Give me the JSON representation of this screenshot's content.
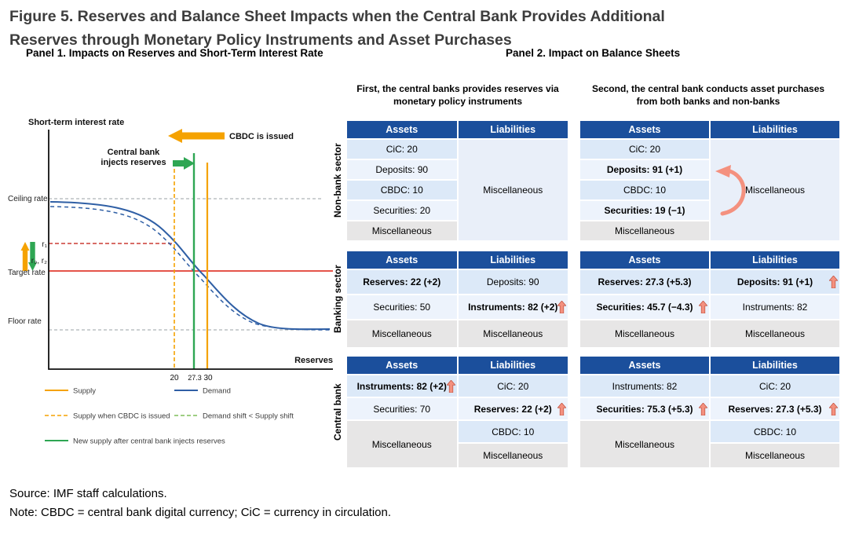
{
  "figure": {
    "title_line1": "Figure 5. Reserves and Balance Sheet Impacts when the Central Bank Provides Additional",
    "title_line2": "Reserves through Monetary Policy Instruments and Asset Purchases",
    "source": "Source: IMF staff calculations.",
    "note": "Note: CBDC = central bank digital currency; CiC = currency in circulation."
  },
  "colors": {
    "header_bg": "#1B4F9C",
    "row_alt0": "#DCE9F8",
    "row_alt1": "#EDF3FC",
    "row_misc": "#E7E6E6",
    "row_merged": "#E9EFF9",
    "arrow_fill": "#F4917F",
    "arrow_stroke": "#C0503E",
    "supply_color": "#F5A200",
    "demand_color": "#2F5FA5",
    "injection_color": "#2EA653",
    "demand_shift_color": "#7FBE5A",
    "target_color": "#E03C31",
    "r1_color": "#CC3B33",
    "guide_color": "#9AA0A6"
  },
  "panel1": {
    "title": "Panel 1. Impacts on Reserves and Short-Term Interest Rate",
    "y_axis_label": "Short-term interest rate",
    "x_axis_label": "Reserves",
    "cbdc_arrow_label": "CBDC is issued",
    "inject_label_line1": "Central bank",
    "inject_label_line2": "injects reserves",
    "ceiling_label": "Ceiling rate",
    "target_label": "Target rate",
    "floor_label": "Floor rate",
    "r1_label": "r₁",
    "r0_r2_label": "r₀, r₂",
    "x_ticks": [
      "20",
      "27.3",
      "30"
    ],
    "legend": [
      {
        "label": "Supply",
        "style": "solid",
        "color": "#F5A200"
      },
      {
        "label": "Demand",
        "style": "solid",
        "color": "#2F5FA5"
      },
      {
        "label": "Supply when CBDC is issued",
        "style": "dashed",
        "color": "#F5A200"
      },
      {
        "label": "Demand shift < Supply shift",
        "style": "dashed",
        "color": "#7FBE5A"
      },
      {
        "label": "New supply after central bank injects reserves",
        "style": "solid",
        "color": "#2EA653"
      }
    ]
  },
  "panel2": {
    "title": "Panel 2. Impact on Balance Sheets",
    "column_headers": [
      "First, the central banks provides reserves via monetary policy instruments",
      "Second, the central bank conducts asset purchases from both banks and non-banks"
    ],
    "table_headers": {
      "assets": "Assets",
      "liabilities": "Liabilities"
    },
    "sectors": [
      {
        "name": "Non-bank sector",
        "tables": [
          {
            "rows": [
              {
                "assets": {
                  "text": "CiC: 20"
                },
                "liabilities": {
                  "text": "Miscellaneous",
                  "merged": true,
                  "rowspan": 5
                }
              },
              {
                "assets": {
                  "text": "Deposits: 90"
                }
              },
              {
                "assets": {
                  "text": "CBDC: 10"
                }
              },
              {
                "assets": {
                  "text": "Securities: 20"
                }
              },
              {
                "assets": {
                  "text": "Miscellaneous",
                  "misc": true
                }
              }
            ]
          },
          {
            "curved_arrow": true,
            "rows": [
              {
                "assets": {
                  "text": "CiC: 20"
                },
                "liabilities": {
                  "text": "Miscellaneous",
                  "merged": true,
                  "rowspan": 5
                }
              },
              {
                "assets": {
                  "text": "Deposits: 91 (+1)",
                  "bold": true
                }
              },
              {
                "assets": {
                  "text": "CBDC: 10"
                }
              },
              {
                "assets": {
                  "text": "Securities: 19 (−1)",
                  "bold": true
                }
              },
              {
                "assets": {
                  "text": "Miscellaneous",
                  "misc": true
                }
              }
            ]
          }
        ]
      },
      {
        "name": "Banking sector",
        "tables": [
          {
            "rows": [
              {
                "assets": {
                  "text": "Reserves: 22 (+2)",
                  "bold": true
                },
                "liabilities": {
                  "text": "Deposits: 90"
                }
              },
              {
                "assets": {
                  "text": "Securities: 50"
                },
                "liabilities": {
                  "text": "Instruments: 82 (+2)",
                  "bold": true,
                  "arrow": true
                }
              },
              {
                "assets": {
                  "text": "Miscellaneous",
                  "misc": true
                },
                "liabilities": {
                  "text": "Miscellaneous",
                  "misc": true
                }
              }
            ]
          },
          {
            "rows": [
              {
                "assets": {
                  "text": "Reserves: 27.3 (+5.3)",
                  "bold": true
                },
                "liabilities": {
                  "text": "Deposits: 91 (+1)",
                  "bold": true,
                  "arrow": true
                }
              },
              {
                "assets": {
                  "text": "Securities: 45.7 (−4.3)",
                  "bold": true,
                  "arrow": true
                },
                "liabilities": {
                  "text": "Instruments: 82"
                }
              },
              {
                "assets": {
                  "text": "Miscellaneous",
                  "misc": true
                },
                "liabilities": {
                  "text": "Miscellaneous",
                  "misc": true
                }
              }
            ]
          }
        ]
      },
      {
        "name": "Central bank",
        "tables": [
          {
            "rows": [
              {
                "assets": {
                  "text": "Instruments: 82 (+2)",
                  "bold": true,
                  "arrow": true
                },
                "liabilities": {
                  "text": "CiC: 20"
                }
              },
              {
                "assets": {
                  "text": "Securities: 70"
                },
                "liabilities": {
                  "text": "Reserves: 22 (+2)",
                  "bold": true,
                  "arrow": true
                }
              },
              {
                "assets": {
                  "text": "Miscellaneous",
                  "misc": true,
                  "rowspan": 2
                },
                "liabilities": {
                  "text": "CBDC: 10"
                }
              },
              {
                "liabilities": {
                  "text": "Miscellaneous",
                  "misc": true
                }
              }
            ]
          },
          {
            "rows": [
              {
                "assets": {
                  "text": "Instruments: 82"
                },
                "liabilities": {
                  "text": "CiC: 20"
                }
              },
              {
                "assets": {
                  "text": "Securities: 75.3 (+5.3)",
                  "bold": true,
                  "arrow": true
                },
                "liabilities": {
                  "text": "Reserves: 27.3 (+5.3)",
                  "bold": true,
                  "arrow": true
                }
              },
              {
                "assets": {
                  "text": "Miscellaneous",
                  "misc": true,
                  "rowspan": 2
                },
                "liabilities": {
                  "text": "CBDC: 10"
                }
              },
              {
                "liabilities": {
                  "text": "Miscellaneous",
                  "misc": true
                }
              }
            ]
          }
        ]
      }
    ]
  },
  "chart_data": [
    {
      "type": "line",
      "title": "Panel 1. Impacts on Reserves and Short-Term Interest Rate",
      "xlabel": "Reserves",
      "ylabel": "Short-term interest rate",
      "x_ticks": [
        20,
        27.3,
        30
      ],
      "grid": false,
      "legend_position": "bottom",
      "horizontal_reference_lines": [
        "Ceiling rate",
        "r1",
        "Target rate (r0, r2)",
        "Floor rate"
      ],
      "vertical_supply_lines": [
        {
          "x": 30,
          "label": "Supply",
          "style": "solid",
          "color": "#F5A200"
        },
        {
          "x": 20,
          "label": "Supply when CBDC is issued",
          "style": "dashed",
          "color": "#F5A200"
        },
        {
          "x": 27.3,
          "label": "New supply after central bank injects reserves",
          "style": "solid",
          "color": "#2EA653"
        }
      ],
      "series": [
        {
          "name": "Demand",
          "style": "solid",
          "shape": "downward sigmoid from ceiling rate to floor rate"
        },
        {
          "name": "Demand shift < Supply shift",
          "style": "dashed",
          "shape": "demand curve shifted left/down"
        }
      ],
      "annotations": [
        "CBDC is issued (leftward shift arrow)",
        "Central bank injects reserves (rightward shift arrow)",
        "rate rises r0→r1 then falls back to r2 = r0"
      ]
    },
    {
      "type": "table",
      "title": "Panel 2. Impact on Balance Sheets",
      "balance_sheets": [
        {
          "sector": "Non-bank sector",
          "step": "monetary policy instruments",
          "assets": [
            "CiC: 20",
            "Deposits: 90",
            "CBDC: 10",
            "Securities: 20",
            "Miscellaneous"
          ],
          "liabilities": [
            "Miscellaneous"
          ]
        },
        {
          "sector": "Non-bank sector",
          "step": "asset purchases",
          "assets": [
            "CiC: 20",
            "Deposits: 91 (+1)",
            "CBDC: 10",
            "Securities: 19 (−1)",
            "Miscellaneous"
          ],
          "liabilities": [
            "Miscellaneous"
          ]
        },
        {
          "sector": "Banking sector",
          "step": "monetary policy instruments",
          "assets": [
            "Reserves: 22 (+2)",
            "Securities: 50",
            "Miscellaneous"
          ],
          "liabilities": [
            "Deposits: 90",
            "Instruments: 82 (+2)",
            "Miscellaneous"
          ]
        },
        {
          "sector": "Banking sector",
          "step": "asset purchases",
          "assets": [
            "Reserves: 27.3 (+5.3)",
            "Securities: 45.7 (−4.3)",
            "Miscellaneous"
          ],
          "liabilities": [
            "Deposits: 91 (+1)",
            "Instruments: 82",
            "Miscellaneous"
          ]
        },
        {
          "sector": "Central bank",
          "step": "monetary policy instruments",
          "assets": [
            "Instruments: 82 (+2)",
            "Securities: 70",
            "Miscellaneous"
          ],
          "liabilities": [
            "CiC: 20",
            "Reserves: 22 (+2)",
            "CBDC: 10",
            "Miscellaneous"
          ]
        },
        {
          "sector": "Central bank",
          "step": "asset purchases",
          "assets": [
            "Instruments: 82",
            "Securities: 75.3 (+5.3)",
            "Miscellaneous"
          ],
          "liabilities": [
            "CiC: 20",
            "Reserves: 27.3 (+5.3)",
            "CBDC: 10",
            "Miscellaneous"
          ]
        }
      ]
    }
  ]
}
